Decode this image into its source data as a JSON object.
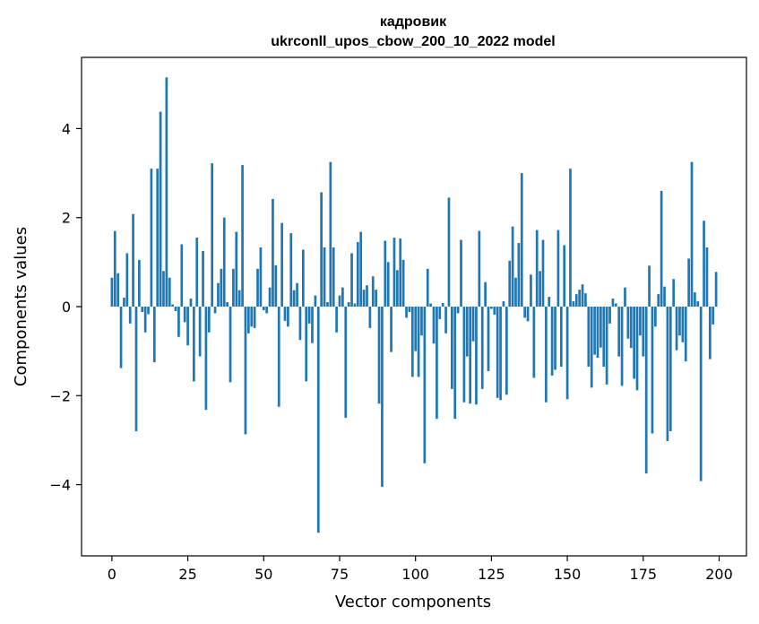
{
  "chart_data": {
    "type": "bar",
    "title_line1": "кадровик",
    "title_line2": "ukrconll_upos_cbow_200_10_2022 model",
    "xlabel": "Vector components",
    "ylabel": "Components values",
    "xlim": [
      -10,
      209
    ],
    "ylim": [
      -5.6,
      5.6
    ],
    "xticks": [
      0,
      25,
      50,
      75,
      100,
      125,
      150,
      175,
      200
    ],
    "yticks": [
      -4,
      -2,
      0,
      2,
      4
    ],
    "ytick_labels": [
      "−4",
      "−2",
      "0",
      "2",
      "4"
    ],
    "bar_color": "#1f77b4",
    "x": [
      0,
      1,
      2,
      3,
      4,
      5,
      6,
      7,
      8,
      9,
      10,
      11,
      12,
      13,
      14,
      15,
      16,
      17,
      18,
      19,
      20,
      21,
      22,
      23,
      24,
      25,
      26,
      27,
      28,
      29,
      30,
      31,
      32,
      33,
      34,
      35,
      36,
      37,
      38,
      39,
      40,
      41,
      42,
      43,
      44,
      45,
      46,
      47,
      48,
      49,
      50,
      51,
      52,
      53,
      54,
      55,
      56,
      57,
      58,
      59,
      60,
      61,
      62,
      63,
      64,
      65,
      66,
      67,
      68,
      69,
      70,
      71,
      72,
      73,
      74,
      75,
      76,
      77,
      78,
      79,
      80,
      81,
      82,
      83,
      84,
      85,
      86,
      87,
      88,
      89,
      90,
      91,
      92,
      93,
      94,
      95,
      96,
      97,
      98,
      99,
      100,
      101,
      102,
      103,
      104,
      105,
      106,
      107,
      108,
      109,
      110,
      111,
      112,
      113,
      114,
      115,
      116,
      117,
      118,
      119,
      120,
      121,
      122,
      123,
      124,
      125,
      126,
      127,
      128,
      129,
      130,
      131,
      132,
      133,
      134,
      135,
      136,
      137,
      138,
      139,
      140,
      141,
      142,
      143,
      144,
      145,
      146,
      147,
      148,
      149,
      150,
      151,
      152,
      153,
      154,
      155,
      156,
      157,
      158,
      159,
      160,
      161,
      162,
      163,
      164,
      165,
      166,
      167,
      168,
      169,
      170,
      171,
      172,
      173,
      174,
      175,
      176,
      177,
      178,
      179,
      180,
      181,
      182,
      183,
      184,
      185,
      186,
      187,
      188,
      189,
      190,
      191,
      192,
      193,
      194,
      195,
      196,
      197,
      198,
      199
    ],
    "values": [
      0.65,
      1.7,
      0.75,
      -1.38,
      0.2,
      1.2,
      -0.38,
      2.08,
      -2.8,
      1.05,
      -0.12,
      -0.58,
      -0.17,
      3.1,
      -1.25,
      3.1,
      4.38,
      0.8,
      5.15,
      0.65,
      0.05,
      -0.1,
      -0.68,
      1.4,
      -0.35,
      -0.87,
      0.18,
      -1.68,
      1.55,
      -1.12,
      1.25,
      -2.32,
      -0.58,
      3.22,
      -0.15,
      0.53,
      0.85,
      2.0,
      0.1,
      -1.7,
      0.85,
      1.68,
      0.37,
      3.18,
      -2.87,
      -0.6,
      -0.45,
      -0.48,
      0.85,
      1.33,
      -0.08,
      -0.15,
      0.43,
      2.42,
      0.93,
      -2.25,
      1.88,
      -0.32,
      -0.45,
      1.65,
      0.37,
      0.53,
      -0.75,
      1.28,
      -1.68,
      -0.38,
      -0.82,
      0.25,
      -5.08,
      2.57,
      1.33,
      0.1,
      3.25,
      1.33,
      -0.58,
      0.25,
      0.43,
      -2.5,
      0.1,
      1.2,
      0.07,
      1.45,
      1.68,
      0.38,
      0.48,
      -0.48,
      0.68,
      0.38,
      -2.18,
      -4.05,
      1.48,
      1.0,
      -1.02,
      1.55,
      0.82,
      1.53,
      1.05,
      -0.25,
      -0.12,
      -1.58,
      -1.0,
      -1.58,
      -0.65,
      -3.52,
      0.85,
      0.07,
      -0.83,
      -2.52,
      -0.28,
      0.08,
      -0.6,
      2.45,
      -1.85,
      -2.52,
      -0.15,
      1.5,
      -2.15,
      -1.12,
      -2.18,
      -0.78,
      -2.2,
      1.7,
      -1.85,
      0.55,
      -1.45,
      -0.05,
      -0.18,
      -2.05,
      -2.1,
      0.12,
      -1.98,
      1.03,
      1.8,
      0.65,
      1.43,
      3.0,
      -0.25,
      -0.33,
      0.72,
      -1.6,
      1.72,
      0.8,
      1.5,
      -2.15,
      0.22,
      -1.55,
      -1.42,
      1.72,
      -1.35,
      1.38,
      -2.08,
      3.1,
      0.12,
      0.28,
      0.38,
      0.5,
      0.3,
      -1.35,
      -1.82,
      -1.08,
      -1.15,
      -0.92,
      -1.35,
      -1.75,
      -0.38,
      0.18,
      0.07,
      -1.12,
      -1.78,
      0.43,
      -0.72,
      -0.93,
      -1.62,
      -1.88,
      -0.65,
      -1.12,
      -3.75,
      0.92,
      -2.85,
      -0.45,
      0.28,
      2.6,
      0.45,
      -3.02,
      -2.8,
      0.62,
      -0.98,
      -0.65,
      -0.8,
      -1.23,
      1.08,
      3.25,
      0.32,
      0.12,
      -3.92,
      1.93,
      1.33,
      -1.18,
      -0.4,
      0.78
    ]
  }
}
